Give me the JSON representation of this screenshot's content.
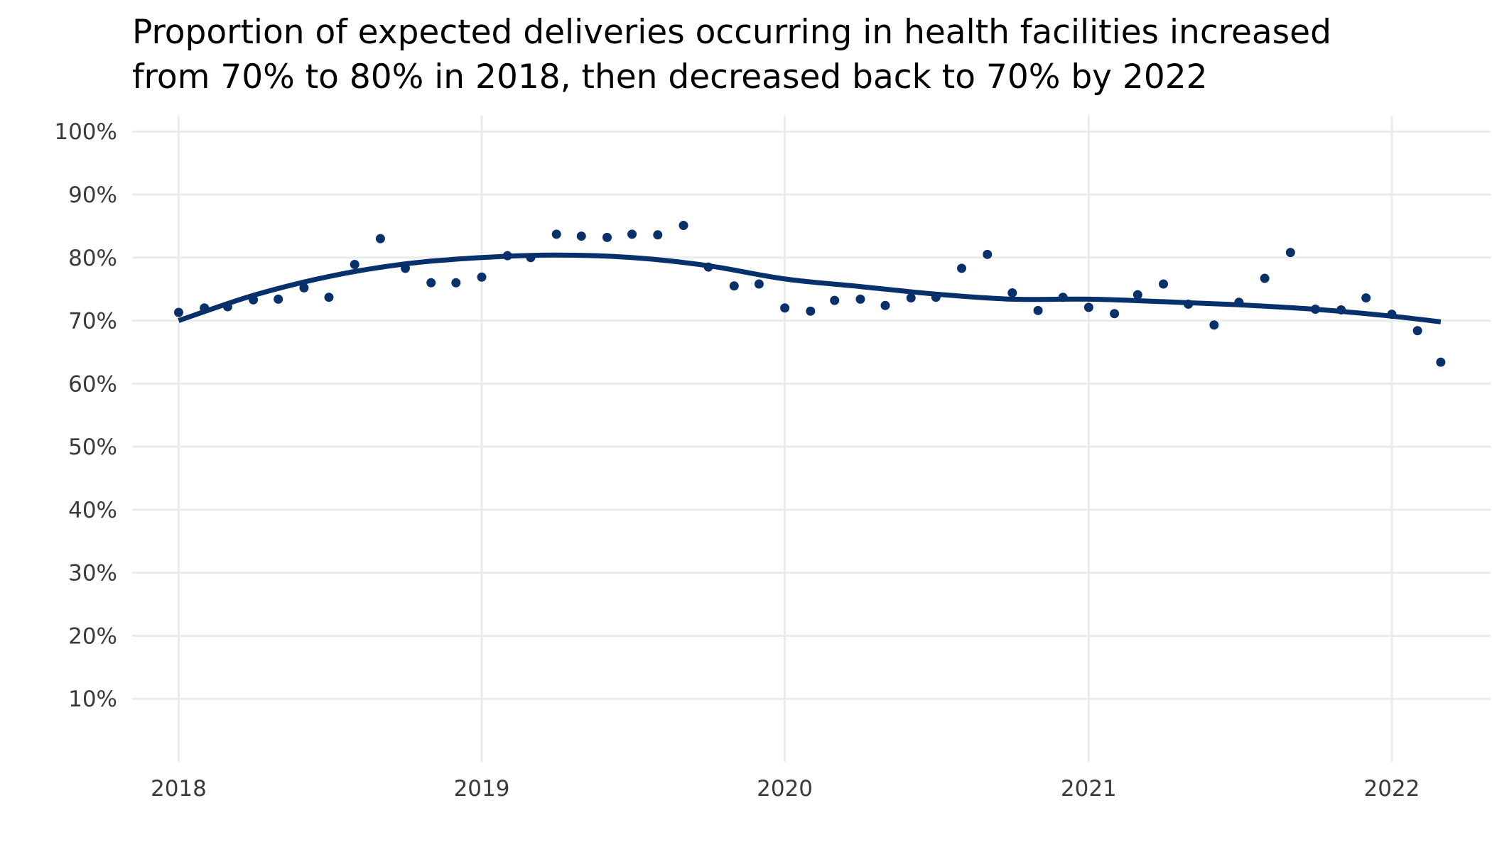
{
  "chart_data": {
    "type": "scatter",
    "title_lines": [
      "Proportion of expected deliveries occurring in health facilities increased",
      "from 70% to 80% in 2018, then decreased back to 70% by 2022"
    ],
    "xlabel": "",
    "ylabel": "",
    "x_ticks": [
      "2018",
      "2019",
      "2020",
      "2021",
      "2022"
    ],
    "y_ticks": [
      "10%",
      "20%",
      "30%",
      "40%",
      "50%",
      "60%",
      "70%",
      "80%",
      "90%",
      "100%"
    ],
    "xlim": [
      "2017-11-06",
      "2022-04-30"
    ],
    "ylim": [
      0,
      102.5
    ],
    "grid": true,
    "legend": "none",
    "colors": {
      "series": "#08306b",
      "grid": "#ebebeb"
    },
    "series": [
      {
        "type": "points",
        "x": [
          "2018-01",
          "2018-02",
          "2018-03",
          "2018-04",
          "2018-05",
          "2018-06",
          "2018-07",
          "2018-08",
          "2018-09",
          "2018-10",
          "2018-11",
          "2018-12",
          "2019-01",
          "2019-02",
          "2019-03",
          "2019-04",
          "2019-05",
          "2019-06",
          "2019-07",
          "2019-08",
          "2019-09",
          "2019-10",
          "2019-11",
          "2019-12",
          "2020-01",
          "2020-02",
          "2020-03",
          "2020-04",
          "2020-05",
          "2020-06",
          "2020-07",
          "2020-08",
          "2020-09",
          "2020-10",
          "2020-11",
          "2020-12",
          "2021-01",
          "2021-02",
          "2021-03",
          "2021-04",
          "2021-05",
          "2021-06",
          "2021-07",
          "2021-08",
          "2021-09",
          "2021-10",
          "2021-11",
          "2021-12",
          "2022-01",
          "2022-02",
          "2022-03"
        ],
        "y": [
          71.3,
          72.0,
          72.2,
          73.3,
          73.4,
          75.2,
          73.7,
          78.9,
          83.0,
          78.3,
          76.0,
          76.0,
          76.9,
          80.3,
          80.0,
          83.7,
          83.4,
          83.2,
          83.7,
          83.6,
          85.1,
          78.5,
          75.5,
          75.8,
          72.0,
          71.5,
          73.2,
          73.4,
          72.4,
          73.6,
          73.7,
          78.3,
          80.5,
          74.4,
          71.6,
          73.7,
          72.1,
          71.1,
          74.1,
          75.8,
          72.6,
          69.3,
          72.9,
          76.7,
          80.8,
          71.8,
          71.7,
          73.6,
          71.0,
          68.4,
          63.4
        ]
      },
      {
        "type": "trend",
        "x": [
          "2018-01",
          "2018-04",
          "2018-07",
          "2018-10",
          "2019-01",
          "2019-04",
          "2019-07",
          "2019-10",
          "2020-01",
          "2020-04",
          "2020-07",
          "2020-10",
          "2021-01",
          "2021-04",
          "2021-07",
          "2021-10",
          "2022-01",
          "2022-03"
        ],
        "y": [
          70.0,
          74.0,
          77.0,
          79.0,
          80.0,
          80.4,
          80.0,
          78.7,
          76.6,
          75.4,
          74.2,
          73.4,
          73.4,
          73.0,
          72.5,
          71.8,
          70.7,
          69.8
        ]
      }
    ]
  }
}
